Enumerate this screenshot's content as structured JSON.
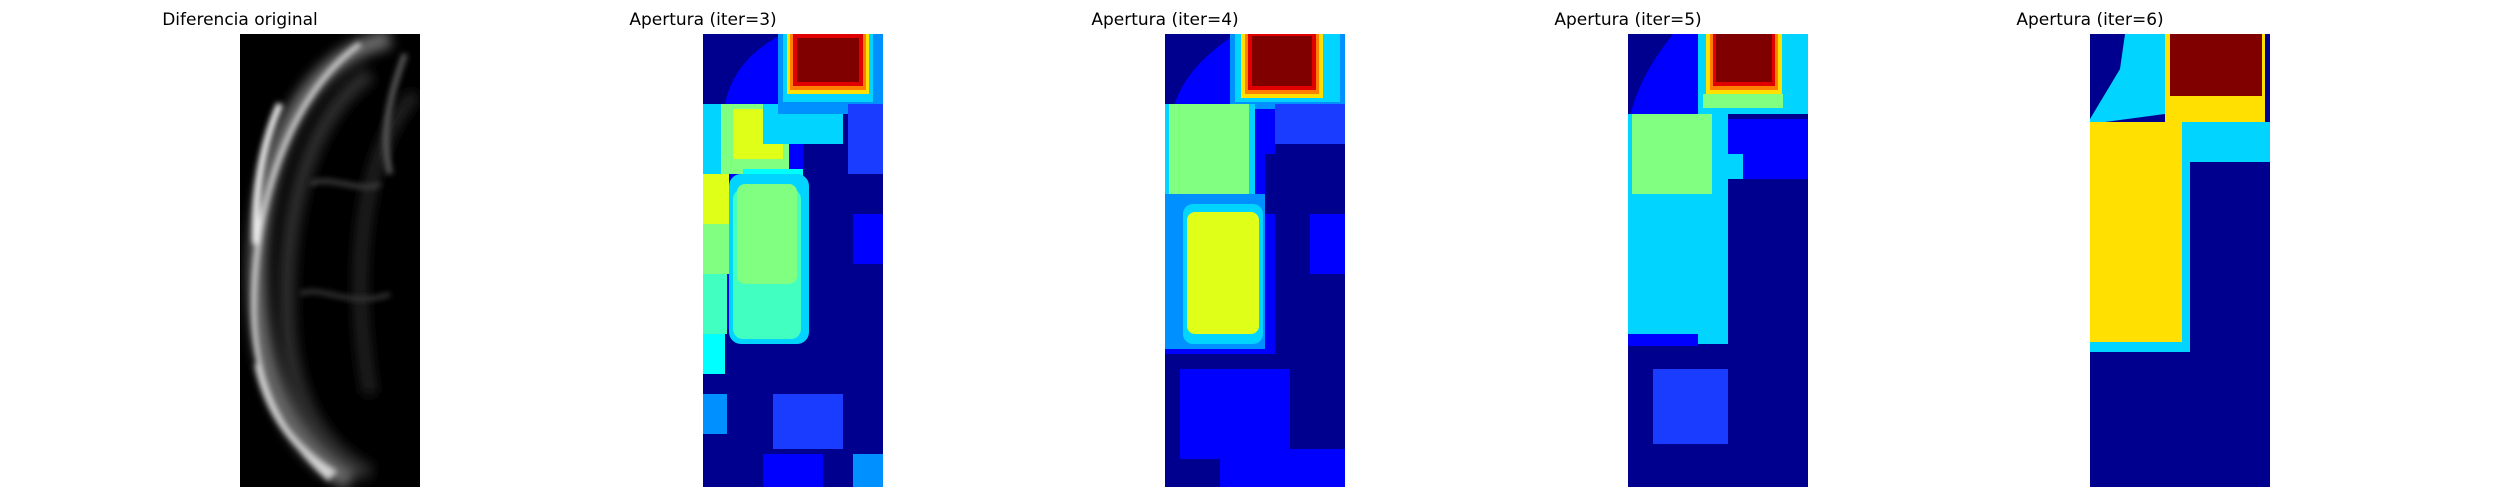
{
  "panels": [
    {
      "title": "Diferencia original",
      "colormap": "gray"
    },
    {
      "title": "Apertura (iter=3)",
      "colormap": "jet"
    },
    {
      "title": "Apertura (iter=4)",
      "colormap": "jet"
    },
    {
      "title": "Apertura (iter=5)",
      "colormap": "jet"
    },
    {
      "title": "Apertura (iter=6)",
      "colormap": "jet"
    }
  ],
  "colors": {
    "jet_dark_navy": "#00008f",
    "jet_blue": "#0000ff",
    "jet_mid_blue": "#1a3cff",
    "jet_light_blue": "#0090ff",
    "jet_cyan": "#00d4ff",
    "jet_aqua": "#40ffc0",
    "jet_green": "#80ff80",
    "jet_yellow_green": "#e0ff18",
    "jet_yellow": "#ffe000",
    "jet_orange": "#ff8000",
    "jet_red": "#e00000",
    "jet_dark_red": "#800000"
  }
}
